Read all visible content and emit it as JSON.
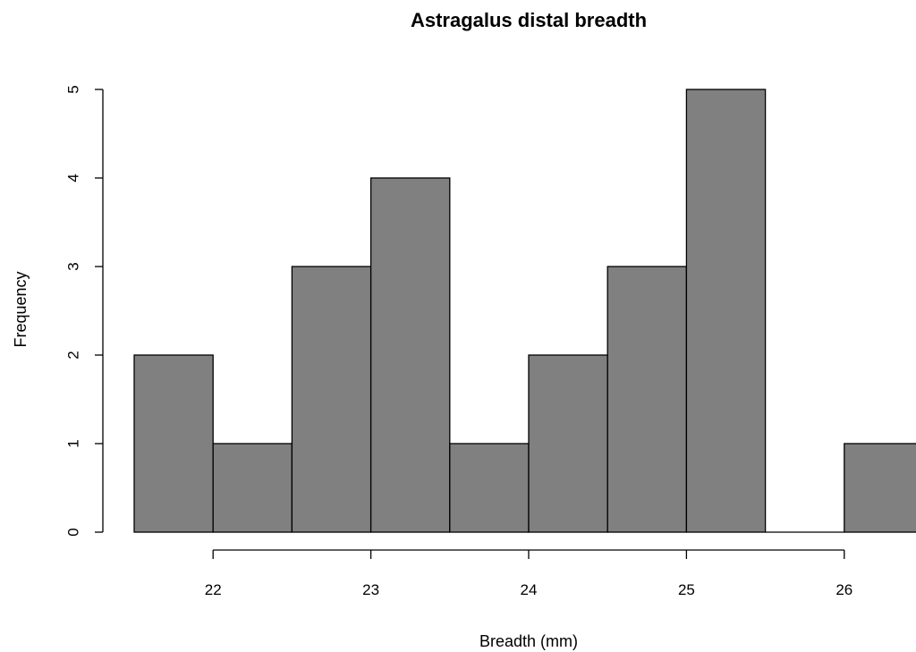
{
  "chart_data": {
    "type": "bar",
    "subtype": "histogram",
    "title": "Astragalus distal breadth",
    "xlabel": "Breadth (mm)",
    "ylabel": "Frequency",
    "bins": [
      {
        "start": 21.5,
        "end": 22.0,
        "count": 2
      },
      {
        "start": 22.0,
        "end": 22.5,
        "count": 1
      },
      {
        "start": 22.5,
        "end": 23.0,
        "count": 3
      },
      {
        "start": 23.0,
        "end": 23.5,
        "count": 4
      },
      {
        "start": 23.5,
        "end": 24.0,
        "count": 1
      },
      {
        "start": 24.0,
        "end": 24.5,
        "count": 2
      },
      {
        "start": 24.5,
        "end": 25.0,
        "count": 3
      },
      {
        "start": 25.0,
        "end": 25.5,
        "count": 5
      },
      {
        "start": 25.5,
        "end": 26.0,
        "count": 0
      },
      {
        "start": 26.0,
        "end": 26.5,
        "count": 1
      }
    ],
    "xticks": [
      22,
      23,
      24,
      25,
      26
    ],
    "yticks": [
      0,
      1,
      2,
      3,
      4,
      5
    ],
    "xlim": [
      21.5,
      26.5
    ],
    "ylim": [
      0,
      5
    ],
    "grid": false,
    "bar_color": "#808080",
    "edge_color": "#000000"
  }
}
